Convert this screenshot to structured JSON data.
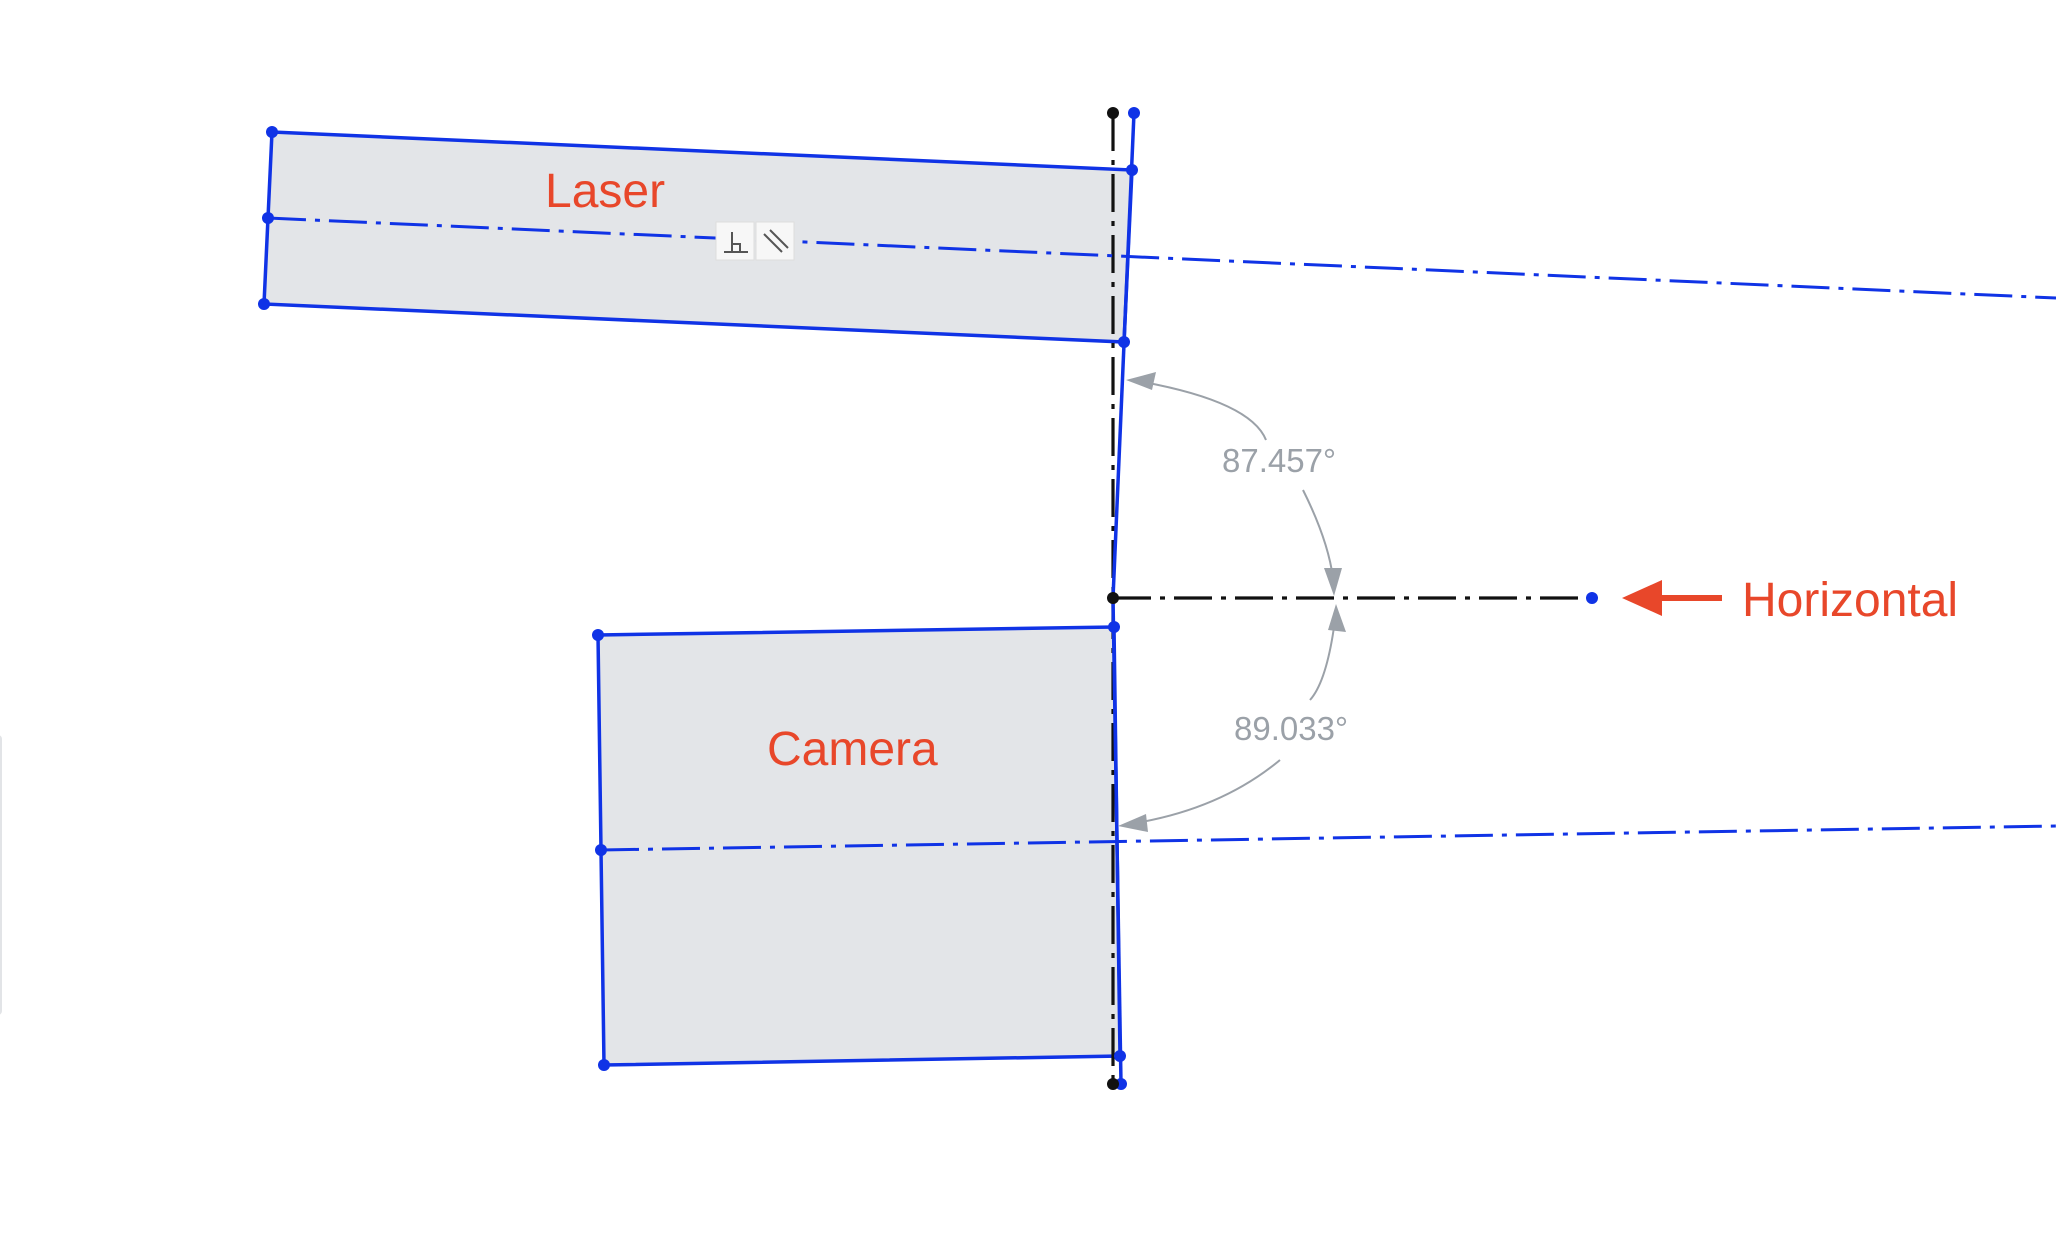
{
  "canvas": {
    "labels": {
      "laser": "Laser",
      "camera": "Camera",
      "horizontal": "Horizontal"
    },
    "dimensions": {
      "upper_angle": "87.457°",
      "lower_angle": "89.033°"
    },
    "constraint_icons": [
      "perpendicular-icon",
      "parallel-icon"
    ],
    "colors": {
      "sketch_line": "#1033e6",
      "construction_line": "#111111",
      "annotation": "#e8472a",
      "dimension": "#9ba1a8",
      "shape_fill": "#e3e5e8"
    }
  }
}
